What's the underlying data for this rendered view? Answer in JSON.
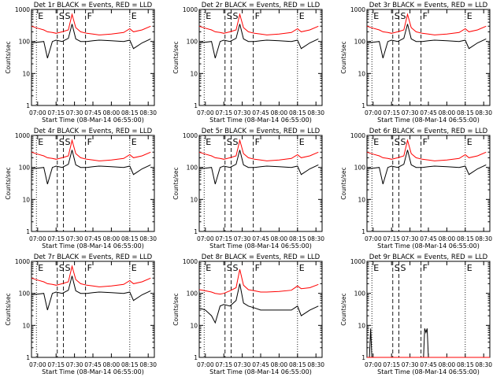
{
  "figure": {
    "time_ticks": [
      "07:00",
      "07:15",
      "07:30",
      "07:45",
      "08:00",
      "08:15",
      "08:30"
    ],
    "xlabel": "Start Time (08-Mar-14 06:55:00)",
    "ylabel": "Counts/sec",
    "y_ticks": [
      "1",
      "10",
      "100",
      "1000"
    ]
  },
  "colors": {
    "events": "#000000",
    "lld": "#ff0000",
    "axes": "#000000"
  },
  "chart_data": [
    {
      "type": "line",
      "title": "Det 1r BLACK = Events, RED = LLD",
      "xlabel": "Start Time (08-Mar-14 06:55:00)",
      "ylabel": "Counts/sec",
      "xlim": [
        "06:55",
        "08:35"
      ],
      "ylim": [
        1,
        1000
      ],
      "yscale": "log",
      "x": [
        "06:55",
        "07:00",
        "07:05",
        "07:08",
        "07:12",
        "07:15",
        "07:20",
        "07:25",
        "07:28",
        "07:31",
        "07:35",
        "07:40",
        "07:45",
        "07:50",
        "08:00",
        "08:10",
        "08:15",
        "08:18",
        "08:25",
        "08:32"
      ],
      "series": [
        {
          "name": "BLACK = Events",
          "values": [
            90,
            95,
            100,
            30,
            100,
            110,
            100,
            125,
            350,
            120,
            100,
            100,
            105,
            110,
            105,
            100,
            110,
            60,
            90,
            120
          ]
        },
        {
          "name": "RED = LLD",
          "values": [
            300,
            260,
            230,
            200,
            190,
            180,
            200,
            230,
            700,
            270,
            200,
            180,
            170,
            160,
            170,
            190,
            250,
            200,
            230,
            300
          ]
        }
      ],
      "markers": [
        {
          "label": "E",
          "time": "06:59"
        },
        {
          "label": "S",
          "time": "07:16"
        },
        {
          "label": "S",
          "time": "07:21"
        },
        {
          "label": "F",
          "time": "07:39"
        },
        {
          "label": "E",
          "time": "08:15"
        }
      ]
    },
    {
      "type": "line",
      "title": "Det 2r BLACK = Events, RED = LLD",
      "xlabel": "Start Time (08-Mar-14 06:55:00)",
      "ylabel": "Counts/sec",
      "xlim": [
        "06:55",
        "08:35"
      ],
      "ylim": [
        1,
        1000
      ],
      "yscale": "log",
      "x": [
        "06:55",
        "07:00",
        "07:05",
        "07:08",
        "07:12",
        "07:15",
        "07:20",
        "07:25",
        "07:28",
        "07:31",
        "07:35",
        "07:40",
        "07:45",
        "07:50",
        "08:00",
        "08:10",
        "08:15",
        "08:18",
        "08:25",
        "08:32"
      ],
      "series": [
        {
          "name": "BLACK = Events",
          "values": [
            90,
            95,
            100,
            30,
            100,
            110,
            100,
            125,
            350,
            120,
            100,
            100,
            105,
            110,
            105,
            100,
            110,
            60,
            90,
            120
          ]
        },
        {
          "name": "RED = LLD",
          "values": [
            300,
            260,
            230,
            200,
            190,
            180,
            200,
            230,
            700,
            270,
            200,
            180,
            170,
            160,
            170,
            190,
            250,
            200,
            230,
            300
          ]
        }
      ],
      "markers": [
        {
          "label": "E",
          "time": "06:59"
        },
        {
          "label": "S",
          "time": "07:16"
        },
        {
          "label": "S",
          "time": "07:21"
        },
        {
          "label": "F",
          "time": "07:39"
        },
        {
          "label": "E",
          "time": "08:15"
        }
      ]
    },
    {
      "type": "line",
      "title": "Det 3r BLACK = Events, RED = LLD",
      "xlabel": "Start Time (08-Mar-14 06:55:00)",
      "ylabel": "Counts/sec",
      "xlim": [
        "06:55",
        "08:35"
      ],
      "ylim": [
        1,
        1000
      ],
      "yscale": "log",
      "x": [
        "06:55",
        "07:00",
        "07:05",
        "07:08",
        "07:12",
        "07:15",
        "07:20",
        "07:25",
        "07:28",
        "07:31",
        "07:35",
        "07:40",
        "07:45",
        "07:50",
        "08:00",
        "08:10",
        "08:15",
        "08:18",
        "08:25",
        "08:32"
      ],
      "series": [
        {
          "name": "BLACK = Events",
          "values": [
            90,
            95,
            100,
            30,
            100,
            110,
            100,
            125,
            350,
            120,
            100,
            100,
            105,
            110,
            105,
            100,
            110,
            60,
            90,
            120
          ]
        },
        {
          "name": "RED = LLD",
          "values": [
            300,
            260,
            230,
            200,
            190,
            180,
            200,
            230,
            700,
            270,
            200,
            180,
            170,
            160,
            170,
            190,
            250,
            200,
            230,
            300
          ]
        }
      ],
      "markers": [
        {
          "label": "E",
          "time": "06:59"
        },
        {
          "label": "S",
          "time": "07:16"
        },
        {
          "label": "S",
          "time": "07:21"
        },
        {
          "label": "F",
          "time": "07:39"
        },
        {
          "label": "E",
          "time": "08:15"
        }
      ]
    },
    {
      "type": "line",
      "title": "Det 4r BLACK = Events, RED = LLD",
      "xlabel": "Start Time (08-Mar-14 06:55:00)",
      "ylabel": "Counts/sec",
      "xlim": [
        "06:55",
        "08:35"
      ],
      "ylim": [
        1,
        1000
      ],
      "yscale": "log",
      "x": [
        "06:55",
        "07:00",
        "07:05",
        "07:08",
        "07:12",
        "07:15",
        "07:20",
        "07:25",
        "07:28",
        "07:31",
        "07:35",
        "07:40",
        "07:45",
        "07:50",
        "08:00",
        "08:10",
        "08:15",
        "08:18",
        "08:25",
        "08:32"
      ],
      "series": [
        {
          "name": "BLACK = Events",
          "values": [
            90,
            95,
            100,
            30,
            100,
            110,
            100,
            125,
            350,
            120,
            100,
            100,
            105,
            110,
            105,
            100,
            110,
            60,
            90,
            120
          ]
        },
        {
          "name": "RED = LLD",
          "values": [
            300,
            260,
            230,
            200,
            190,
            180,
            200,
            230,
            700,
            270,
            200,
            180,
            170,
            160,
            170,
            190,
            250,
            200,
            230,
            300
          ]
        }
      ],
      "markers": [
        {
          "label": "E",
          "time": "06:59"
        },
        {
          "label": "S",
          "time": "07:16"
        },
        {
          "label": "S",
          "time": "07:21"
        },
        {
          "label": "F",
          "time": "07:39"
        },
        {
          "label": "E",
          "time": "08:15"
        }
      ]
    },
    {
      "type": "line",
      "title": "Det 5r BLACK = Events, RED = LLD",
      "xlabel": "Start Time (08-Mar-14 06:55:00)",
      "ylabel": "Counts/sec",
      "xlim": [
        "06:55",
        "08:35"
      ],
      "ylim": [
        1,
        1000
      ],
      "yscale": "log",
      "x": [
        "06:55",
        "07:00",
        "07:05",
        "07:08",
        "07:12",
        "07:15",
        "07:20",
        "07:25",
        "07:28",
        "07:31",
        "07:35",
        "07:40",
        "07:45",
        "07:50",
        "08:00",
        "08:10",
        "08:15",
        "08:18",
        "08:25",
        "08:32"
      ],
      "series": [
        {
          "name": "BLACK = Events",
          "values": [
            90,
            95,
            100,
            30,
            100,
            110,
            100,
            125,
            350,
            120,
            100,
            100,
            105,
            110,
            105,
            100,
            110,
            60,
            90,
            120
          ]
        },
        {
          "name": "RED = LLD",
          "values": [
            300,
            260,
            230,
            200,
            190,
            180,
            200,
            230,
            700,
            270,
            200,
            180,
            170,
            160,
            170,
            190,
            250,
            200,
            230,
            300
          ]
        }
      ],
      "markers": [
        {
          "label": "E",
          "time": "06:59"
        },
        {
          "label": "S",
          "time": "07:16"
        },
        {
          "label": "S",
          "time": "07:21"
        },
        {
          "label": "F",
          "time": "07:39"
        },
        {
          "label": "E",
          "time": "08:15"
        }
      ]
    },
    {
      "type": "line",
      "title": "Det 6r BLACK = Events, RED = LLD",
      "xlabel": "Start Time (08-Mar-14 06:55:00)",
      "ylabel": "Counts/sec",
      "xlim": [
        "06:55",
        "08:35"
      ],
      "ylim": [
        1,
        1000
      ],
      "yscale": "log",
      "x": [
        "06:55",
        "07:00",
        "07:05",
        "07:08",
        "07:12",
        "07:15",
        "07:20",
        "07:25",
        "07:28",
        "07:31",
        "07:35",
        "07:40",
        "07:45",
        "07:50",
        "08:00",
        "08:10",
        "08:15",
        "08:18",
        "08:25",
        "08:32"
      ],
      "series": [
        {
          "name": "BLACK = Events",
          "values": [
            90,
            95,
            100,
            30,
            100,
            110,
            100,
            125,
            350,
            120,
            100,
            100,
            105,
            110,
            105,
            100,
            110,
            60,
            90,
            120
          ]
        },
        {
          "name": "RED = LLD",
          "values": [
            300,
            260,
            230,
            200,
            190,
            180,
            200,
            230,
            700,
            270,
            200,
            180,
            170,
            160,
            170,
            190,
            250,
            200,
            230,
            300
          ]
        }
      ],
      "markers": [
        {
          "label": "E",
          "time": "06:59"
        },
        {
          "label": "S",
          "time": "07:16"
        },
        {
          "label": "S",
          "time": "07:21"
        },
        {
          "label": "F",
          "time": "07:39"
        },
        {
          "label": "E",
          "time": "08:15"
        }
      ]
    },
    {
      "type": "line",
      "title": "Det 7r BLACK = Events, RED = LLD",
      "xlabel": "Start Time (08-Mar-14 06:55:00)",
      "ylabel": "Counts/sec",
      "xlim": [
        "06:55",
        "08:35"
      ],
      "ylim": [
        1,
        1000
      ],
      "yscale": "log",
      "x": [
        "06:55",
        "07:00",
        "07:05",
        "07:08",
        "07:12",
        "07:15",
        "07:20",
        "07:25",
        "07:28",
        "07:31",
        "07:35",
        "07:40",
        "07:45",
        "07:50",
        "08:00",
        "08:10",
        "08:15",
        "08:18",
        "08:25",
        "08:32"
      ],
      "series": [
        {
          "name": "BLACK = Events",
          "values": [
            90,
            95,
            100,
            30,
            100,
            110,
            100,
            125,
            350,
            120,
            100,
            100,
            105,
            110,
            105,
            100,
            110,
            60,
            90,
            120
          ]
        },
        {
          "name": "RED = LLD",
          "values": [
            300,
            260,
            230,
            200,
            190,
            180,
            200,
            230,
            700,
            270,
            200,
            180,
            170,
            160,
            170,
            190,
            250,
            200,
            230,
            300
          ]
        }
      ],
      "markers": [
        {
          "label": "E",
          "time": "06:59"
        },
        {
          "label": "S",
          "time": "07:16"
        },
        {
          "label": "S",
          "time": "07:21"
        },
        {
          "label": "F",
          "time": "07:39"
        },
        {
          "label": "E",
          "time": "08:15"
        }
      ]
    },
    {
      "type": "line",
      "title": "Det 8r BLACK = Events, RED = LLD",
      "xlabel": "Start Time (08-Mar-14 06:55:00)",
      "ylabel": "Counts/sec",
      "xlim": [
        "06:55",
        "08:35"
      ],
      "ylim": [
        1,
        1000
      ],
      "yscale": "log",
      "x": [
        "06:55",
        "07:00",
        "07:05",
        "07:08",
        "07:12",
        "07:15",
        "07:20",
        "07:25",
        "07:28",
        "07:31",
        "07:35",
        "07:40",
        "07:45",
        "07:50",
        "08:00",
        "08:10",
        "08:15",
        "08:18",
        "08:25",
        "08:32"
      ],
      "series": [
        {
          "name": "BLACK = Events",
          "values": [
            35,
            30,
            20,
            12,
            40,
            45,
            40,
            60,
            200,
            50,
            40,
            35,
            30,
            30,
            30,
            30,
            40,
            20,
            30,
            40
          ]
        },
        {
          "name": "RED = LLD",
          "values": [
            130,
            120,
            110,
            100,
            95,
            100,
            120,
            150,
            560,
            180,
            130,
            120,
            110,
            110,
            115,
            125,
            170,
            140,
            150,
            190
          ]
        }
      ],
      "markers": [
        {
          "label": "E",
          "time": "06:59"
        },
        {
          "label": "S",
          "time": "07:16"
        },
        {
          "label": "S",
          "time": "07:21"
        },
        {
          "label": "F",
          "time": "07:39"
        },
        {
          "label": "E",
          "time": "08:15"
        }
      ]
    },
    {
      "type": "line",
      "title": "Det 9r BLACK = Events, RED = LLD",
      "xlabel": "Start Time (08-Mar-14 06:55:00)",
      "ylabel": "Counts/sec",
      "xlim": [
        "06:55",
        "08:35"
      ],
      "ylim": [
        1,
        1000
      ],
      "yscale": "log",
      "x": [
        "06:55",
        "06:57",
        "06:58",
        "06:59",
        "07:00",
        "07:41",
        "07:42",
        "07:43",
        "07:44",
        "07:45",
        "08:35"
      ],
      "series": [
        {
          "name": "BLACK = Events",
          "values": [
            1,
            1,
            8,
            1,
            1,
            1,
            8,
            6,
            8,
            1,
            1
          ]
        },
        {
          "name": "RED = LLD",
          "values": [
            1,
            1,
            1,
            1,
            1,
            1,
            1,
            1,
            1,
            1,
            1
          ]
        }
      ],
      "markers": [
        {
          "label": "E",
          "time": "06:59"
        },
        {
          "label": "S",
          "time": "07:16"
        },
        {
          "label": "S",
          "time": "07:21"
        },
        {
          "label": "F",
          "time": "07:39"
        },
        {
          "label": "E",
          "time": "08:15"
        }
      ]
    }
  ]
}
